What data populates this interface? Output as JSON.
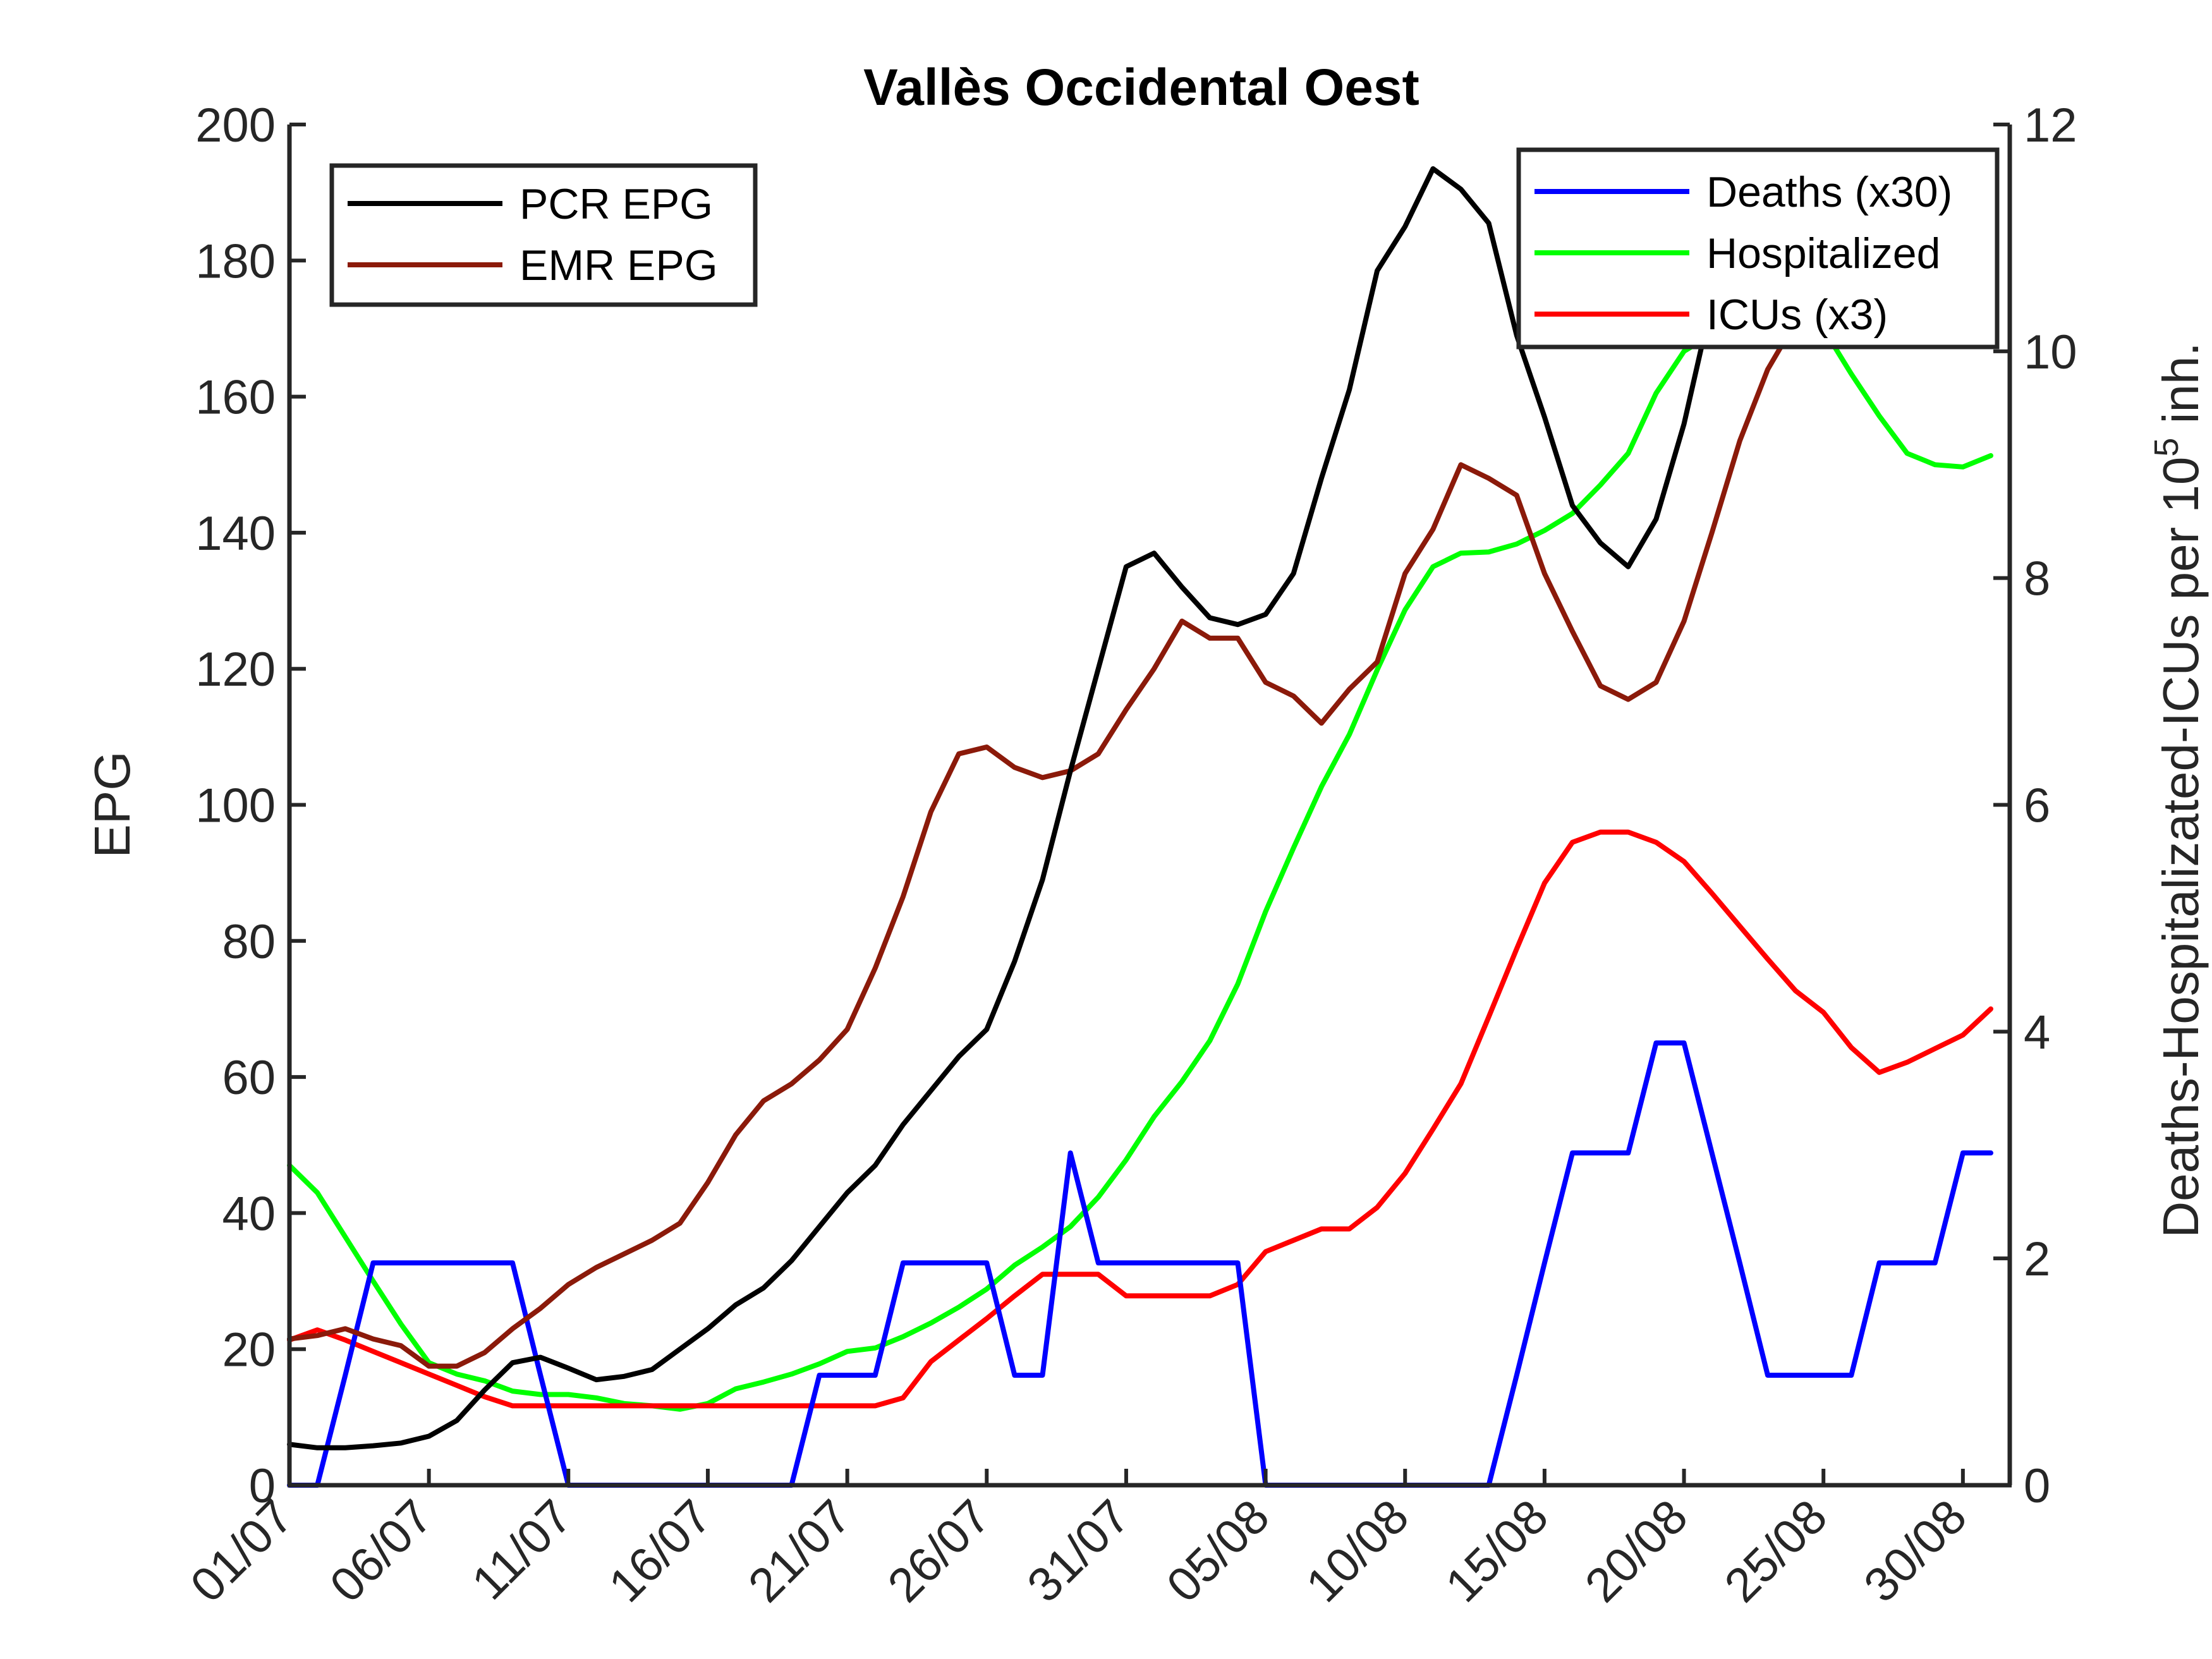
{
  "chart_data": {
    "type": "line",
    "title": "Vallès Occidental Oest",
    "ylabel": "EPG",
    "y2label": "Deaths-Hospitalizated-ICUs per 10^5 inh.",
    "y2label_parts": {
      "base": "Deaths-Hospitalizated-ICUs per 10",
      "sup": "5",
      "tail": " inh."
    },
    "ylim": [
      0,
      200
    ],
    "y2lim": [
      0,
      12
    ],
    "yticks": [
      "0",
      "20",
      "40",
      "60",
      "80",
      "100",
      "120",
      "140",
      "160",
      "180",
      "200"
    ],
    "y2ticks": [
      "0",
      "2",
      "4",
      "6",
      "8",
      "10",
      "12"
    ],
    "x_tick_labels": [
      "01/07",
      "06/07",
      "11/07",
      "16/07",
      "21/07",
      "26/07",
      "31/07",
      "05/08",
      "10/08",
      "15/08",
      "20/08",
      "25/08",
      "30/08"
    ],
    "x_day_range": [
      1,
      62
    ],
    "grid": false,
    "legend_left": "top-left",
    "legend_right": "top-right",
    "series": [
      {
        "name": "PCR EPG",
        "axis": "left",
        "color": "#000000",
        "x": [
          1,
          2,
          3,
          4,
          5,
          6,
          7,
          8,
          9,
          10,
          11,
          12,
          13,
          14,
          15,
          16,
          17,
          18,
          19,
          20,
          21,
          22,
          23,
          24,
          25,
          26,
          27,
          28,
          29,
          30,
          31,
          32,
          33,
          34,
          35,
          36,
          37,
          38,
          39,
          40,
          41,
          42,
          43,
          44,
          45,
          46,
          47,
          48,
          49,
          50,
          51,
          52,
          53,
          54,
          55,
          56,
          57,
          58,
          59,
          60,
          61,
          62
        ],
        "values": [
          6,
          5.5,
          5.5,
          5.8,
          6.2,
          7.2,
          9.5,
          14,
          18,
          18.8,
          17.2,
          15.5,
          16,
          17,
          20,
          23,
          26.5,
          29,
          33,
          38,
          43,
          47,
          53,
          58,
          63,
          67,
          77,
          89,
          105,
          120,
          135,
          137,
          132,
          127.5,
          126.5,
          128,
          134,
          148,
          161,
          178.5,
          185,
          193.5,
          190.5,
          185.5,
          169,
          157,
          144,
          138.5,
          135,
          142,
          156,
          174,
          183,
          185,
          186,
          186,
          185.5,
          184,
          182,
          179,
          176,
          181
        ]
      },
      {
        "name": "EMR EPG",
        "axis": "left",
        "color": "#8b1a0a",
        "x": [
          1,
          2,
          3,
          4,
          5,
          6,
          7,
          8,
          9,
          10,
          11,
          12,
          13,
          14,
          15,
          16,
          17,
          18,
          19,
          20,
          21,
          22,
          23,
          24,
          25,
          26,
          27,
          28,
          29,
          30,
          31,
          32,
          33,
          34,
          35,
          36,
          37,
          38,
          39,
          40,
          41,
          42,
          43,
          44,
          45,
          46,
          47,
          48,
          49,
          50,
          51,
          52,
          53,
          54,
          55,
          56,
          57,
          58,
          59,
          60,
          61,
          62
        ],
        "values": [
          21.5,
          22,
          23,
          21.5,
          20.5,
          17.5,
          17.5,
          19.5,
          23,
          26,
          29.5,
          32,
          34,
          36,
          38.5,
          44.5,
          51.5,
          56.5,
          59,
          62.5,
          67,
          76,
          86.5,
          99,
          107.5,
          108.5,
          105.5,
          104,
          105,
          107.5,
          114,
          120,
          127,
          124.5,
          124.5,
          118,
          116,
          112,
          117,
          121,
          134,
          140.5,
          150,
          148,
          145.5,
          134,
          125.5,
          117.5,
          115.5,
          118,
          127,
          140,
          153.5,
          164,
          171,
          173,
          176,
          177,
          180,
          183,
          186,
          189
        ]
      },
      {
        "name": "Deaths (x30)",
        "axis": "right",
        "color": "#0000ff",
        "x": [
          1,
          2,
          3,
          4,
          5,
          6,
          7,
          8,
          9,
          10,
          11,
          12,
          13,
          14,
          15,
          16,
          17,
          18,
          19,
          20,
          21,
          22,
          23,
          24,
          25,
          26,
          27,
          28,
          29,
          30,
          31,
          32,
          33,
          34,
          35,
          36,
          37,
          38,
          39,
          40,
          41,
          42,
          43,
          44,
          45,
          46,
          47,
          48,
          49,
          50,
          51,
          52,
          53,
          54,
          55,
          56,
          57,
          58,
          59,
          60,
          61,
          62
        ],
        "values": [
          0,
          0,
          0.97,
          1.96,
          1.96,
          1.96,
          1.96,
          1.96,
          1.96,
          0.97,
          0,
          0,
          0,
          0,
          0,
          0,
          0,
          0,
          0,
          0.97,
          0.97,
          0.97,
          1.96,
          1.96,
          1.96,
          1.96,
          0.97,
          0.97,
          2.93,
          1.96,
          1.96,
          1.96,
          1.96,
          1.96,
          1.96,
          0,
          0,
          0,
          0,
          0,
          0,
          0,
          0,
          0,
          0.97,
          1.96,
          2.93,
          2.93,
          2.93,
          3.9,
          3.9,
          2.93,
          1.96,
          0.97,
          0.97,
          0.97,
          0.97,
          1.96,
          1.96,
          1.96,
          2.93,
          2.93
        ]
      },
      {
        "name": "Hospitalized",
        "axis": "right",
        "color": "#00ff00",
        "x": [
          1,
          2,
          3,
          4,
          5,
          6,
          7,
          8,
          9,
          10,
          11,
          12,
          13,
          14,
          15,
          16,
          17,
          18,
          19,
          20,
          21,
          22,
          23,
          24,
          25,
          26,
          27,
          28,
          29,
          30,
          31,
          32,
          33,
          34,
          35,
          36,
          37,
          38,
          39,
          40,
          41,
          42,
          43,
          44,
          45,
          46,
          47,
          48,
          49,
          50,
          51,
          52,
          53,
          54,
          55,
          56,
          57,
          58,
          59,
          60,
          61,
          62
        ],
        "values": [
          2.82,
          2.58,
          2.19,
          1.8,
          1.42,
          1.08,
          0.98,
          0.92,
          0.83,
          0.8,
          0.8,
          0.77,
          0.72,
          0.7,
          0.67,
          0.72,
          0.85,
          0.91,
          0.98,
          1.07,
          1.18,
          1.21,
          1.31,
          1.43,
          1.57,
          1.73,
          1.94,
          2.1,
          2.28,
          2.54,
          2.87,
          3.25,
          3.56,
          3.92,
          4.42,
          5.06,
          5.62,
          6.16,
          6.62,
          7.19,
          7.72,
          8.1,
          8.22,
          8.23,
          8.3,
          8.42,
          8.57,
          8.82,
          9.1,
          9.63,
          10.0,
          10.15,
          10.3,
          10.4,
          10.4,
          10.2,
          9.8,
          9.43,
          9.1,
          9.0,
          8.98,
          9.08
        ]
      },
      {
        "name": "ICUs (x3)",
        "axis": "right",
        "color": "#ff0000",
        "x": [
          1,
          2,
          3,
          4,
          5,
          6,
          7,
          8,
          9,
          10,
          11,
          12,
          13,
          14,
          15,
          16,
          17,
          18,
          19,
          20,
          21,
          22,
          23,
          24,
          25,
          26,
          27,
          28,
          29,
          30,
          31,
          32,
          33,
          34,
          35,
          36,
          37,
          38,
          39,
          40,
          41,
          42,
          43,
          44,
          45,
          46,
          47,
          48,
          49,
          50,
          51,
          52,
          53,
          54,
          55,
          56,
          57,
          58,
          59,
          60,
          61,
          62
        ],
        "values": [
          1.28,
          1.37,
          1.28,
          1.18,
          1.08,
          0.98,
          0.88,
          0.78,
          0.7,
          0.7,
          0.7,
          0.7,
          0.7,
          0.7,
          0.7,
          0.7,
          0.7,
          0.7,
          0.7,
          0.7,
          0.7,
          0.7,
          0.77,
          1.09,
          1.28,
          1.47,
          1.67,
          1.86,
          1.86,
          1.86,
          1.67,
          1.67,
          1.67,
          1.67,
          1.77,
          2.06,
          2.16,
          2.26,
          2.26,
          2.45,
          2.75,
          3.14,
          3.54,
          4.13,
          4.73,
          5.31,
          5.67,
          5.76,
          5.76,
          5.67,
          5.5,
          5.22,
          4.93,
          4.64,
          4.36,
          4.17,
          3.86,
          3.64,
          3.73,
          3.85,
          3.97,
          4.2
        ]
      }
    ]
  }
}
